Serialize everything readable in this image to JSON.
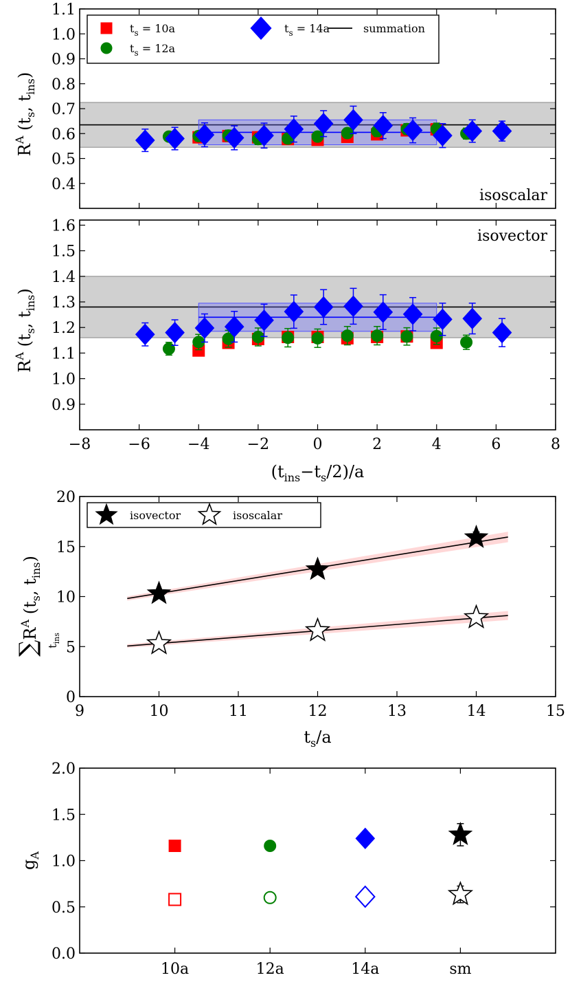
{
  "chart_data": [
    {
      "id": "isoscalar",
      "type": "scatter",
      "panel_label": "isoscalar",
      "ylabel": {
        "base": "R",
        "sup": "A",
        "args": "(t",
        "sub1": "s",
        "comma": ", t",
        "sub2": "ins",
        "close": ")"
      },
      "xlim": [
        -8,
        8
      ],
      "ylim": [
        0.3,
        1.1
      ],
      "yticks": [
        "0.4",
        "0.5",
        "0.6",
        "0.7",
        "0.8",
        "0.9",
        "1.0",
        "1.1"
      ],
      "summation": {
        "value": 0.635,
        "low": 0.545,
        "high": 0.725
      },
      "plateau": {
        "x_from": -4,
        "x_to": 4,
        "value": 0.605,
        "low": 0.555,
        "high": 0.655
      },
      "legend": [
        {
          "label_base": "t",
          "label_sub": "s",
          "label_rest": " = 10a",
          "marker": "square",
          "color": "#ff0000"
        },
        {
          "label_base": "t",
          "label_sub": "s",
          "label_rest": " = 14a",
          "marker": "diamond",
          "color": "#0000ff"
        },
        {
          "label_base": "summation",
          "label_sub": "",
          "label_rest": "",
          "marker": "line",
          "color": "#000000"
        },
        {
          "label_base": "t",
          "label_sub": "s",
          "label_rest": " = 12a",
          "marker": "circle",
          "color": "#008000"
        }
      ],
      "series": [
        {
          "name": "ts = 10a",
          "marker": "square",
          "color": "#ff0000",
          "x": [
            -4,
            -3,
            -2,
            -1,
            0,
            1,
            2,
            3,
            4
          ],
          "y": [
            0.585,
            0.59,
            0.585,
            0.578,
            0.575,
            0.587,
            0.597,
            0.613,
            0.617
          ],
          "err": [
            0.012,
            0.012,
            0.012,
            0.012,
            0.012,
            0.012,
            0.012,
            0.013,
            0.014
          ]
        },
        {
          "name": "ts = 12a",
          "marker": "circle",
          "color": "#008000",
          "x": [
            -5,
            -4,
            -3,
            -2,
            -1,
            0,
            1,
            2,
            3,
            4,
            5
          ],
          "y": [
            0.588,
            0.59,
            0.592,
            0.578,
            0.58,
            0.588,
            0.602,
            0.61,
            0.618,
            0.618,
            0.6
          ],
          "err": [
            0.018,
            0.02,
            0.022,
            0.022,
            0.02,
            0.02,
            0.02,
            0.022,
            0.022,
            0.024,
            0.022
          ]
        },
        {
          "name": "ts = 14a",
          "marker": "diamond",
          "color": "#0000ff",
          "x": [
            -5.8,
            -4.8,
            -3.8,
            -2.8,
            -1.8,
            -0.8,
            0.2,
            1.2,
            2.2,
            3.2,
            4.2,
            5.2,
            6.2
          ],
          "y": [
            0.573,
            0.58,
            0.595,
            0.583,
            0.592,
            0.618,
            0.64,
            0.655,
            0.632,
            0.613,
            0.592,
            0.61,
            0.61
          ],
          "err": [
            0.045,
            0.045,
            0.048,
            0.048,
            0.05,
            0.052,
            0.052,
            0.055,
            0.052,
            0.05,
            0.048,
            0.045,
            0.04
          ]
        }
      ]
    },
    {
      "id": "isovector",
      "type": "scatter",
      "panel_label": "isovector",
      "xlabel": {
        "a": "(t",
        "sub1": "ins",
        "b": "−t",
        "sub2": "s",
        "c": "/2)/a"
      },
      "ylabel": {
        "base": "R",
        "sup": "A",
        "args": "(t",
        "sub1": "s",
        "comma": ", t",
        "sub2": "ins",
        "close": ")"
      },
      "xlim": [
        -8,
        8
      ],
      "ylim": [
        0.8,
        1.62
      ],
      "xticks": [
        "−8",
        "−6",
        "−4",
        "−2",
        "0",
        "2",
        "4",
        "6",
        "8"
      ],
      "yticks": [
        "0.9",
        "1.0",
        "1.1",
        "1.2",
        "1.3",
        "1.4",
        "1.5",
        "1.6"
      ],
      "summation": {
        "value": 1.28,
        "low": 1.16,
        "high": 1.4
      },
      "plateau": {
        "x_from": -4,
        "x_to": 4,
        "value": 1.24,
        "low": 1.185,
        "high": 1.295
      },
      "series": [
        {
          "name": "ts = 10a",
          "marker": "square",
          "color": "#ff0000",
          "x": [
            -4,
            -3,
            -2,
            -1,
            0,
            1,
            2,
            3,
            4
          ],
          "y": [
            1.11,
            1.14,
            1.155,
            1.163,
            1.163,
            1.158,
            1.163,
            1.165,
            1.14
          ],
          "err": [
            0.012,
            0.012,
            0.012,
            0.012,
            0.012,
            0.012,
            0.012,
            0.012,
            0.013
          ]
        },
        {
          "name": "ts = 12a",
          "marker": "circle",
          "color": "#008000",
          "x": [
            -5,
            -4,
            -3,
            -2,
            -1,
            0,
            1,
            2,
            3,
            4,
            5
          ],
          "y": [
            1.117,
            1.143,
            1.156,
            1.163,
            1.16,
            1.158,
            1.168,
            1.168,
            1.165,
            1.166,
            1.142
          ],
          "err": [
            0.025,
            0.03,
            0.033,
            0.035,
            0.036,
            0.036,
            0.036,
            0.036,
            0.034,
            0.032,
            0.028
          ]
        },
        {
          "name": "ts = 14a",
          "marker": "diamond",
          "color": "#0000ff",
          "x": [
            -5.8,
            -4.8,
            -3.8,
            -2.8,
            -1.8,
            -0.8,
            0.2,
            1.2,
            2.2,
            3.2,
            4.2,
            5.2,
            6.2
          ],
          "y": [
            1.173,
            1.18,
            1.198,
            1.203,
            1.228,
            1.262,
            1.28,
            1.283,
            1.26,
            1.252,
            1.232,
            1.235,
            1.18
          ],
          "err": [
            0.045,
            0.05,
            0.055,
            0.06,
            0.063,
            0.065,
            0.068,
            0.07,
            0.068,
            0.065,
            0.063,
            0.06,
            0.055
          ]
        }
      ]
    },
    {
      "id": "summation",
      "type": "line",
      "xlabel": {
        "a": "t",
        "sub1": "s",
        "b": "/a"
      },
      "ylabel": {
        "sum": "∑",
        "sub_ins": "t",
        "sub_ins2": "ins",
        "base": "R",
        "sup": "A",
        "args": "(t",
        "sub1": "s",
        "comma": ", t",
        "sub2": "ins",
        "close": ")"
      },
      "xlim": [
        9,
        15
      ],
      "ylim": [
        0,
        20
      ],
      "xticks": [
        "9",
        "10",
        "11",
        "12",
        "13",
        "14",
        "15"
      ],
      "yticks": [
        "0",
        "5",
        "10",
        "15",
        "20"
      ],
      "legend": [
        {
          "label": "isovector",
          "marker": "star-filled"
        },
        {
          "label": "isoscalar",
          "marker": "star-open"
        }
      ],
      "series": [
        {
          "name": "isovector",
          "marker": "star-filled",
          "x": [
            10,
            12,
            14
          ],
          "y": [
            10.3,
            12.7,
            15.9
          ],
          "err": [
            0.15,
            0.2,
            0.55
          ],
          "fit": {
            "x0": 9.6,
            "x1": 14.4,
            "slope": 1.28,
            "intercept": -2.48,
            "band": 0.35
          }
        },
        {
          "name": "isoscalar",
          "marker": "star-open",
          "x": [
            10,
            12,
            14
          ],
          "y": [
            5.3,
            6.6,
            7.9
          ],
          "err": [
            0.12,
            0.18,
            0.4
          ],
          "fit": {
            "x0": 9.6,
            "x1": 14.4,
            "slope": 0.635,
            "intercept": -1.04,
            "band": 0.3
          }
        }
      ]
    },
    {
      "id": "gA",
      "type": "scatter",
      "ylabel": {
        "base": "g",
        "sub": "A"
      },
      "xlim": [
        -1,
        4
      ],
      "ylim": [
        0,
        2
      ],
      "categories": [
        "10a",
        "12a",
        "14a",
        "sm"
      ],
      "yticks": [
        "0.0",
        "0.5",
        "1.0",
        "1.5",
        "2.0"
      ],
      "series": [
        {
          "name": "isovector",
          "values": [
            1.16,
            1.16,
            1.24,
            1.28
          ],
          "err": [
            0.012,
            0.013,
            0.03,
            0.12
          ],
          "markers": [
            "square",
            "circle",
            "diamond",
            "star-filled"
          ],
          "colors": [
            "#ff0000",
            "#008000",
            "#0000ff",
            "#000000"
          ],
          "filled": true
        },
        {
          "name": "isoscalar",
          "values": [
            0.58,
            0.6,
            0.61,
            0.635
          ],
          "err": [
            0.008,
            0.01,
            0.012,
            0.09
          ],
          "markers": [
            "square",
            "circle",
            "diamond",
            "star-open"
          ],
          "colors": [
            "#ff0000",
            "#008000",
            "#0000ff",
            "#000000"
          ],
          "filled": false
        }
      ]
    }
  ]
}
